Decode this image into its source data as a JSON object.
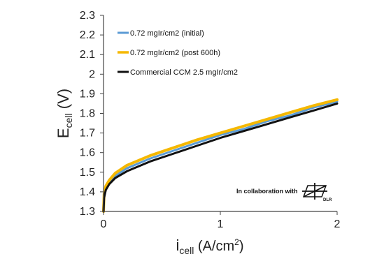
{
  "chart_data": {
    "type": "line",
    "xlabel": {
      "main": "i",
      "sub": "cell",
      "rest": " (A/cm",
      "sup": "2",
      "end": ")"
    },
    "ylabel": {
      "main": "E",
      "sub": "cell",
      "rest": " (V)"
    },
    "xlim": [
      0,
      2
    ],
    "ylim": [
      1.3,
      2.3
    ],
    "x_ticks": [
      "0",
      "1",
      "2"
    ],
    "y_ticks": [
      "1.3",
      "1.4",
      "1.5",
      "1.6",
      "1.7",
      "1.8",
      "1.9",
      "2",
      "2.1",
      "2.2",
      "2.3"
    ],
    "legend_position": "top-left",
    "grid": false,
    "series": [
      {
        "name": "0.72 mgIr/cm2 (initial)",
        "color": "#5b9bd5",
        "x": [
          0,
          0.005,
          0.02,
          0.05,
          0.1,
          0.2,
          0.4,
          0.6,
          0.8,
          1.0,
          1.2,
          1.4,
          1.6,
          1.8,
          2.0
        ],
        "y": [
          1.3,
          1.38,
          1.42,
          1.45,
          1.48,
          1.52,
          1.57,
          1.61,
          1.65,
          1.69,
          1.72,
          1.76,
          1.79,
          1.83,
          1.86
        ]
      },
      {
        "name": "0.72 mgIr/cm2 (post 600h)",
        "color": "#f5b800",
        "x": [
          0,
          0.005,
          0.02,
          0.05,
          0.1,
          0.2,
          0.4,
          0.6,
          0.8,
          1.0,
          1.2,
          1.4,
          1.6,
          1.8,
          2.0
        ],
        "y": [
          1.3,
          1.39,
          1.43,
          1.46,
          1.495,
          1.535,
          1.585,
          1.625,
          1.665,
          1.7,
          1.735,
          1.77,
          1.805,
          1.84,
          1.87
        ]
      },
      {
        "name": "Commercial CCM 2.5 mgIr/cm2",
        "color": "#111111",
        "x": [
          0,
          0.005,
          0.02,
          0.05,
          0.1,
          0.2,
          0.4,
          0.6,
          0.8,
          1.0,
          1.2,
          1.4,
          1.6,
          1.8,
          2.0
        ],
        "y": [
          1.3,
          1.37,
          1.41,
          1.44,
          1.47,
          1.505,
          1.555,
          1.595,
          1.635,
          1.675,
          1.71,
          1.745,
          1.78,
          1.815,
          1.85
        ]
      }
    ],
    "annotation": {
      "text": "In collaboration with",
      "logo_text": "DLR"
    }
  }
}
